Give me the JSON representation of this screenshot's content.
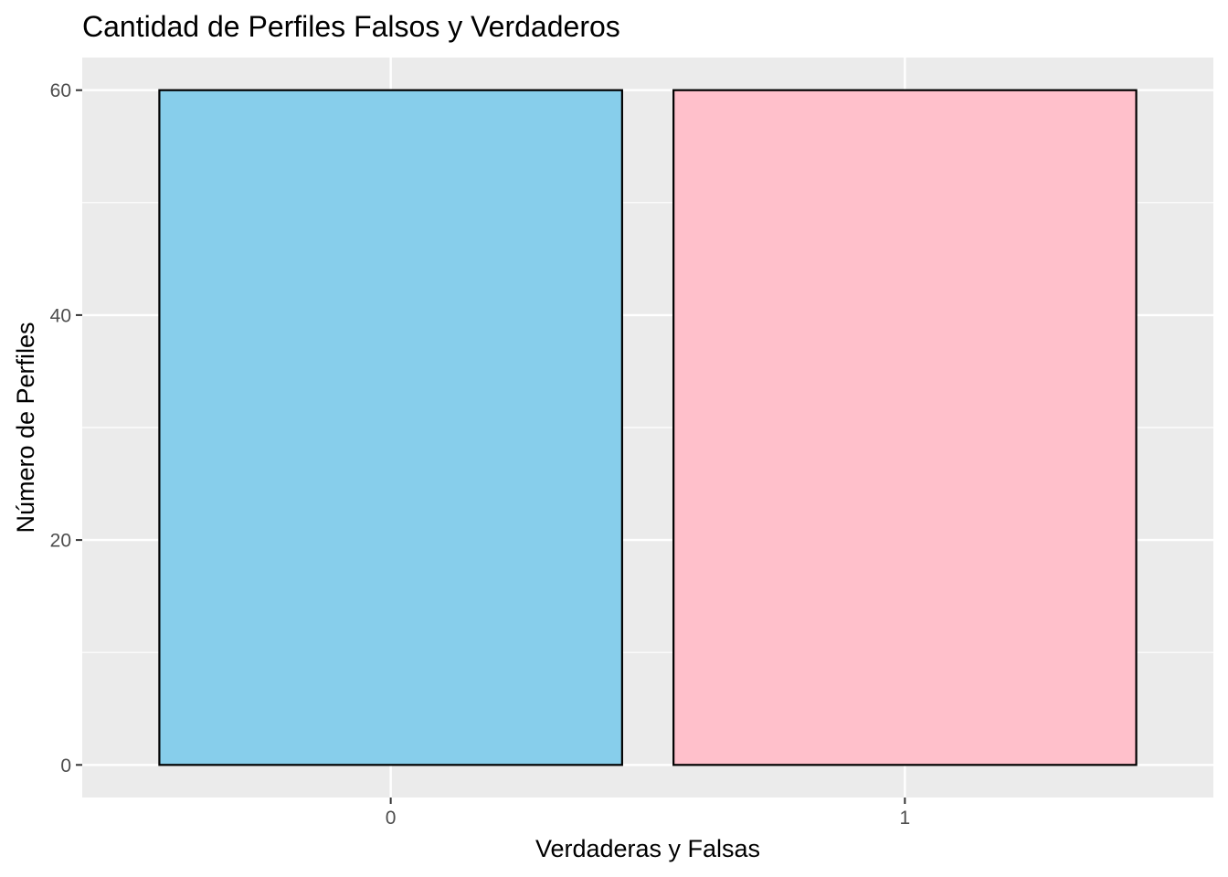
{
  "chart_data": {
    "type": "bar",
    "title": "Cantidad de Perfiles Falsos y Verdaderos",
    "xlabel": "Verdaderas y Falsas",
    "ylabel": "Número de Perfiles",
    "categories": [
      "0",
      "1"
    ],
    "values": [
      60,
      60
    ],
    "bar_colors": [
      "#87CEEB",
      "#FFC0CB"
    ],
    "bar_outline": "#000000",
    "ylim": [
      -2.9,
      62.9
    ],
    "yticks": [
      0,
      20,
      40,
      60
    ],
    "grid": true,
    "panel_background": "#EBEBEB",
    "grid_color": "#FFFFFF"
  }
}
